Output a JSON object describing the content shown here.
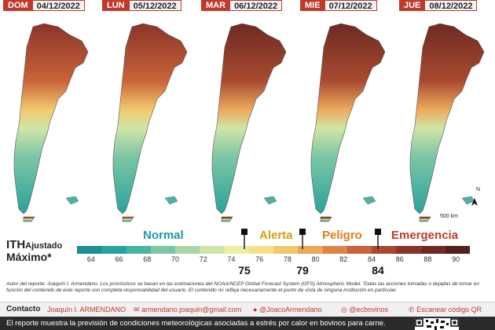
{
  "days": [
    {
      "name": "DOM",
      "date": "04/12/2022"
    },
    {
      "name": "LUN",
      "date": "05/12/2022"
    },
    {
      "name": "MAR",
      "date": "06/12/2022"
    },
    {
      "name": "MIE",
      "date": "07/12/2022"
    },
    {
      "name": "JUE",
      "date": "08/12/2022"
    }
  ],
  "scale_label": "500 km",
  "north_label": "N",
  "legend": {
    "ith": "ITH",
    "ajustado": "Ajustado",
    "maximo": "Máximo*",
    "categories": [
      {
        "label": "Normal",
        "color": "#1e9aa3"
      },
      {
        "label": "Alerta",
        "color": "#d4a20e"
      },
      {
        "label": "Peligro",
        "color": "#e07b1a"
      },
      {
        "label": "Emergencia",
        "color": "#c0392b"
      }
    ],
    "ticks": [
      "64",
      "66",
      "68",
      "70",
      "72",
      "74",
      "76",
      "78",
      "80",
      "82",
      "84",
      "86",
      "88",
      "90"
    ],
    "thresholds": [
      "75",
      "79",
      "84"
    ],
    "colors": [
      "#1d8e92",
      "#2aa39c",
      "#4db3a1",
      "#7cc5a5",
      "#a9d6a8",
      "#d0e6a6",
      "#eceea0",
      "#f3e08a",
      "#f1c86c",
      "#eca85a",
      "#dd8448",
      "#c9633a",
      "#a84a30",
      "#8a3427",
      "#6e2a22",
      "#561f1b"
    ]
  },
  "author_text": "Autor del reporte: Joaquín I. Armendano. Los pronósticos se basan en las estimaciones del NOAA/NCEP Global Forecast System (GFS) Atmospheric Model. Todas las acciones tomadas o dejadas de tomar en función del contenido de este reporte son completa responsabilidad del usuario. El contenido no refleja necesariamente el punto de vista de ninguna institución en particular.",
  "contact": {
    "label": "Contacto",
    "name": "Joaquín I. ARMENDANO",
    "email": "armendano.joaquin@gmail.com",
    "twitter": "@JoacoArmendano",
    "instagram": "@ecbovinos",
    "qr": "Escanear código QR"
  },
  "footer": "El reporte muestra la previsión de condiciones meteorológicas asociadas a estrés por calor en bovinos para carne.",
  "map_intensity": [
    0.55,
    0.6,
    0.75,
    0.85,
    0.8
  ]
}
